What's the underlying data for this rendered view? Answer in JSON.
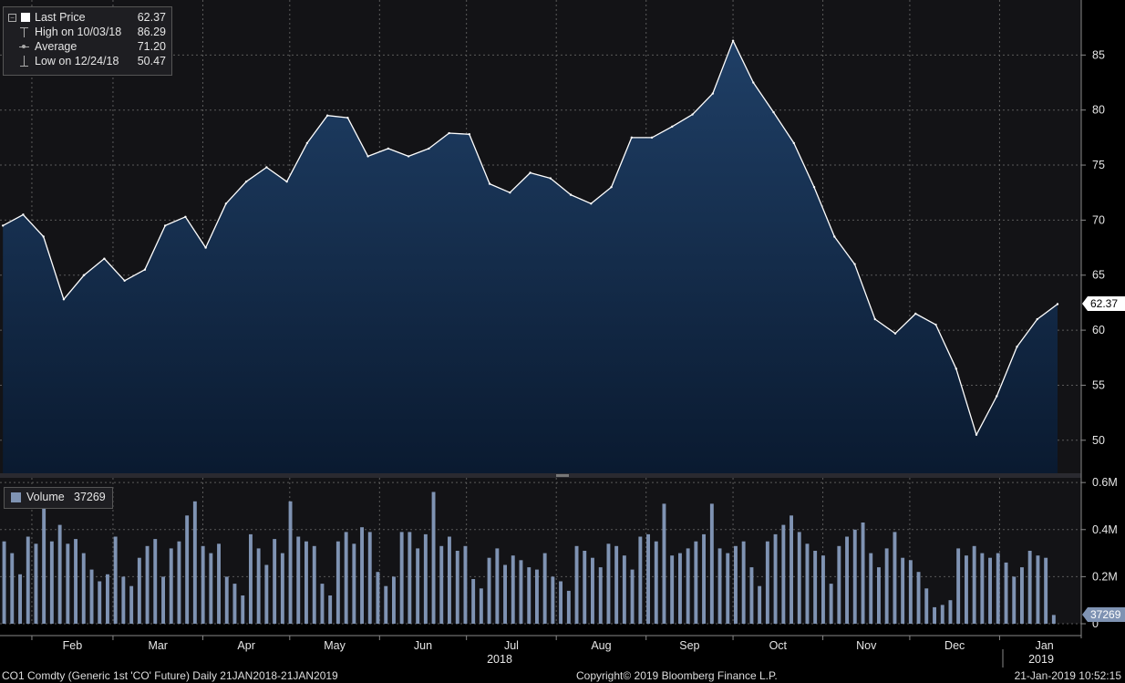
{
  "chart_data": [
    {
      "type": "area",
      "legend": {
        "rows": [
          {
            "label": "Last Price",
            "value": "62.37"
          },
          {
            "label": "High on 10/03/18",
            "value": "86.29"
          },
          {
            "label": "Average",
            "value": "71.20"
          },
          {
            "label": "Low on 12/24/18",
            "value": "50.47"
          }
        ]
      },
      "last_value_tag": "62.37",
      "y_ticks": [
        50,
        55,
        60,
        65,
        70,
        75,
        80,
        85
      ],
      "ylim": [
        47,
        90
      ],
      "x_month_labels": [
        "Feb",
        "Mar",
        "Apr",
        "May",
        "Jun",
        "Jul",
        "Aug",
        "Sep",
        "Oct",
        "Nov",
        "Dec",
        "Jan"
      ],
      "x_year_labels": [
        "2018",
        "2019"
      ],
      "series": [
        {
          "x": [
            "2018-01-22",
            "2018-01-29",
            "2018-02-05",
            "2018-02-12",
            "2018-02-19",
            "2018-02-26",
            "2018-03-05",
            "2018-03-12",
            "2018-03-19",
            "2018-03-26",
            "2018-04-02",
            "2018-04-09",
            "2018-04-16",
            "2018-04-23",
            "2018-04-30",
            "2018-05-07",
            "2018-05-14",
            "2018-05-21",
            "2018-05-28",
            "2018-06-04",
            "2018-06-11",
            "2018-06-18",
            "2018-06-25",
            "2018-07-02",
            "2018-07-09",
            "2018-07-16",
            "2018-07-23",
            "2018-07-30",
            "2018-08-06",
            "2018-08-13",
            "2018-08-20",
            "2018-08-27",
            "2018-09-03",
            "2018-09-10",
            "2018-09-17",
            "2018-09-24",
            "2018-10-01",
            "2018-10-08",
            "2018-10-15",
            "2018-10-22",
            "2018-10-29",
            "2018-11-05",
            "2018-11-12",
            "2018-11-19",
            "2018-11-26",
            "2018-12-03",
            "2018-12-10",
            "2018-12-17",
            "2018-12-24",
            "2018-12-31",
            "2019-01-07",
            "2019-01-14",
            "2019-01-21"
          ],
          "values": [
            69.5,
            70.5,
            68.5,
            62.8,
            65.0,
            66.5,
            64.5,
            65.5,
            69.5,
            70.3,
            67.5,
            71.5,
            73.5,
            74.8,
            73.5,
            77.0,
            79.5,
            79.3,
            75.8,
            76.5,
            75.8,
            76.5,
            77.9,
            77.8,
            73.3,
            72.5,
            74.3,
            73.8,
            72.3,
            71.5,
            73.0,
            77.5,
            77.5,
            78.5,
            79.6,
            81.5,
            86.3,
            82.5,
            79.8,
            77.0,
            73.0,
            68.5,
            66.0,
            61.0,
            59.7,
            61.5,
            60.5,
            56.5,
            50.5,
            54.0,
            58.5,
            61.0,
            62.37
          ]
        }
      ]
    },
    {
      "type": "bar",
      "legend": {
        "label": "Volume",
        "value": "37269"
      },
      "last_value_tag": "37269",
      "y_tick_labels": [
        "0",
        "0.2M",
        "0.4M",
        "0.6M"
      ],
      "y_ticks": [
        0,
        200000,
        400000,
        600000
      ],
      "ylim": [
        0,
        620000
      ],
      "series": [
        {
          "name": "Volume",
          "values": [
            350000,
            300000,
            210000,
            370000,
            340000,
            490000,
            350000,
            420000,
            340000,
            360000,
            300000,
            230000,
            180000,
            210000,
            370000,
            200000,
            160000,
            280000,
            330000,
            360000,
            200000,
            320000,
            350000,
            460000,
            520000,
            330000,
            300000,
            340000,
            200000,
            170000,
            120000,
            380000,
            320000,
            250000,
            360000,
            300000,
            520000,
            370000,
            350000,
            330000,
            170000,
            120000,
            350000,
            390000,
            340000,
            410000,
            390000,
            220000,
            160000,
            200000,
            390000,
            390000,
            320000,
            380000,
            560000,
            330000,
            370000,
            310000,
            330000,
            190000,
            150000,
            280000,
            320000,
            250000,
            290000,
            270000,
            240000,
            230000,
            300000,
            200000,
            180000,
            140000,
            330000,
            310000,
            280000,
            240000,
            340000,
            330000,
            290000,
            230000,
            370000,
            380000,
            350000,
            510000,
            290000,
            300000,
            320000,
            350000,
            380000,
            510000,
            320000,
            300000,
            330000,
            350000,
            240000,
            160000,
            350000,
            380000,
            420000,
            460000,
            390000,
            340000,
            310000,
            290000,
            170000,
            330000,
            370000,
            400000,
            430000,
            300000,
            240000,
            320000,
            390000,
            280000,
            270000,
            220000,
            150000,
            70000,
            80000,
            100000,
            320000,
            290000,
            330000,
            300000,
            280000,
            300000,
            260000,
            200000,
            240000,
            310000,
            290000,
            280000,
            37269
          ]
        }
      ]
    }
  ],
  "footer": {
    "left": "CO1 Comdty (Generic 1st 'CO' Future)  Daily 21JAN2018-21JAN2019",
    "center": "Copyright© 2019 Bloomberg Finance L.P.",
    "right": "21-Jan-2019 10:52:15"
  },
  "colors": {
    "background": "#000000",
    "plot_bg": "#141418",
    "area_top": "#1d3b5e",
    "area_bottom": "#0b1d33",
    "line": "#ffffff",
    "volume_bar": "#7f93b3",
    "grid": "#5a5a5a"
  }
}
